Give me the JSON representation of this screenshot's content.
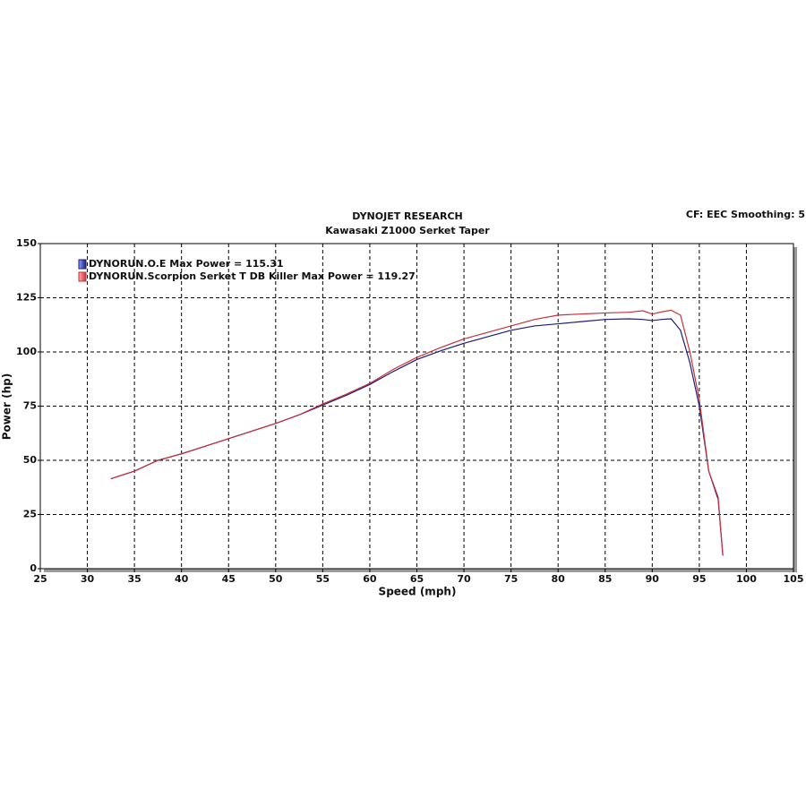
{
  "chart_data": {
    "type": "line",
    "title": "DYNOJET RESEARCH",
    "subtitle": "Kawasaki Z1000 Serket Taper",
    "annotation": "CF: EEC  Smoothing: 5",
    "x_label": "Speed (mph)",
    "y_label": "Power (hp)",
    "x": [
      32.5,
      35,
      37.5,
      40,
      42.5,
      45,
      47.5,
      50,
      52.5,
      55,
      57.5,
      60,
      62.5,
      65,
      67.5,
      70,
      72.5,
      75,
      77.5,
      80,
      82.5,
      85,
      87.5,
      89,
      90,
      91,
      92,
      93,
      94,
      95,
      96,
      97,
      97.5
    ],
    "series": [
      {
        "name": "DYNORUN.O.E Max Power = 115.31",
        "color": "#1c1c7a",
        "values": [
          41.5,
          45,
          50,
          53,
          56.5,
          60,
          63.5,
          67,
          71,
          75.5,
          80,
          85,
          91,
          96.5,
          100.5,
          104,
          107,
          110,
          112,
          113,
          114,
          115,
          115.3,
          115,
          114.5,
          115,
          115.3,
          110,
          95,
          75,
          45,
          32,
          6
        ]
      },
      {
        "name": "DYNORUN.Scorpion Serket T DB Killer Max Power = 119.27",
        "color": "#c8323c",
        "values": [
          41.5,
          45,
          50,
          53,
          56.5,
          60,
          63.5,
          67,
          71,
          76,
          80.5,
          85.5,
          92,
          97.5,
          102,
          106,
          109,
          112,
          115,
          117,
          117.5,
          118,
          118.3,
          119,
          117.5,
          118.5,
          119.27,
          117,
          100,
          78,
          45,
          33,
          6
        ]
      }
    ],
    "xlim": [
      25,
      105
    ],
    "xticks": [
      25,
      30,
      35,
      40,
      45,
      50,
      55,
      60,
      65,
      70,
      75,
      80,
      85,
      90,
      95,
      100,
      105
    ],
    "ylim": [
      0,
      150
    ],
    "yticks": [
      0,
      25,
      50,
      75,
      100,
      125,
      150
    ],
    "grid": true,
    "legend": "top-left"
  }
}
